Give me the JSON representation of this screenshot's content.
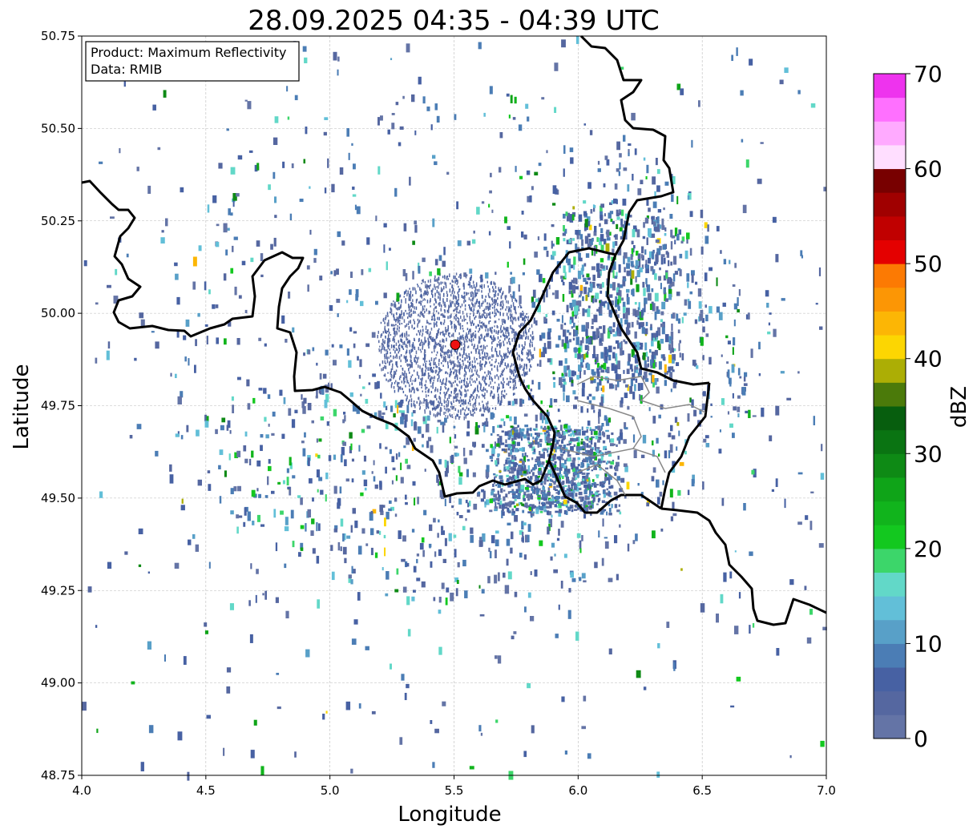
{
  "title": "28.09.2025 04:35 - 04:39 UTC",
  "annotation": {
    "line1": "Product: Maximum Reflectivity",
    "line2": "Data: RMIB"
  },
  "chart_data": {
    "type": "heatmap",
    "title": "28.09.2025 04:35 - 04:39 UTC",
    "xlabel": "Longitude",
    "ylabel": "Latitude",
    "xlim": [
      4.0,
      7.0
    ],
    "ylim": [
      48.75,
      50.75
    ],
    "xticks": [
      "4.0",
      "4.5",
      "5.0",
      "5.5",
      "6.0",
      "6.5",
      "7.0"
    ],
    "yticks": [
      "48.75",
      "49.00",
      "49.25",
      "49.50",
      "49.75",
      "50.00",
      "50.25",
      "50.50",
      "50.75"
    ],
    "grid": true,
    "radar_site": {
      "lon": 5.505,
      "lat": 49.915,
      "color": "#ee1111"
    },
    "colorbar": {
      "label": "dBZ",
      "range": [
        0,
        70
      ],
      "ticks": [
        "0",
        "10",
        "20",
        "30",
        "40",
        "50",
        "60",
        "70"
      ],
      "step": 2.5,
      "colors": [
        "#6474a6",
        "#5567a0",
        "#4761a3",
        "#4b7db5",
        "#58a0c8",
        "#62bfd8",
        "#62d8c8",
        "#3cd66a",
        "#13c81f",
        "#11b41c",
        "#0fa418",
        "#0e8a15",
        "#0a7412",
        "#075e0e",
        "#4b7a0a",
        "#acae05",
        "#fcd602",
        "#fcb605",
        "#fc9605",
        "#fc7a03",
        "#e40000",
        "#c00000",
        "#a00000",
        "#780000",
        "#ffdeff",
        "#ffaaff",
        "#ff70ff",
        "#ee33ee"
      ]
    }
  }
}
